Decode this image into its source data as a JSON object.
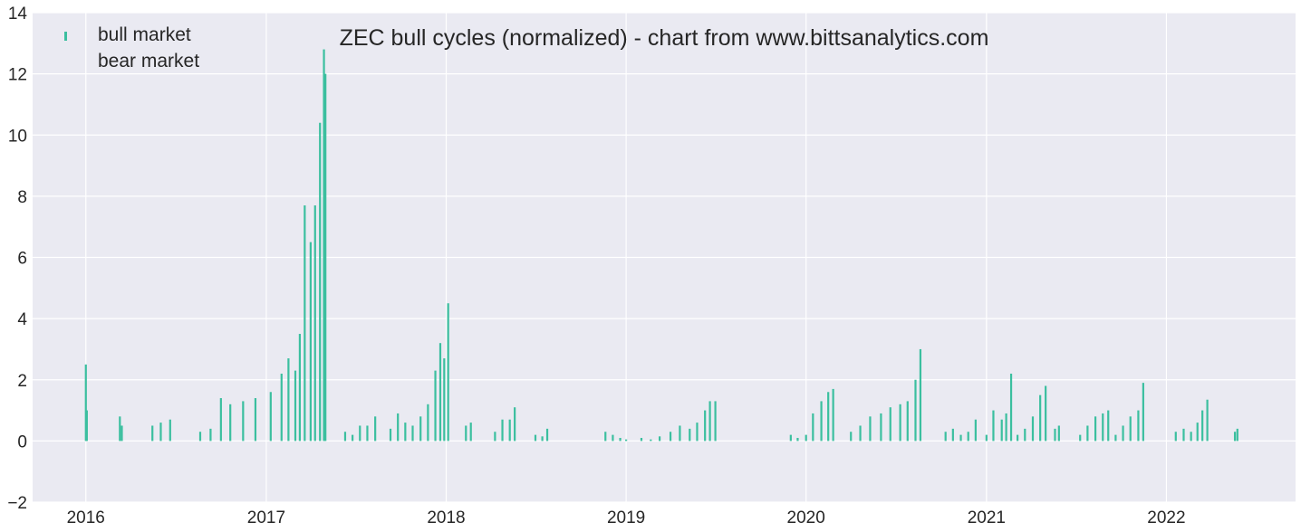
{
  "chart_data": {
    "type": "bar",
    "title": "ZEC bull cycles (normalized)  - chart from www.bittsanalytics.com",
    "xlabel": "",
    "ylabel": "",
    "ylim": [
      -2,
      14
    ],
    "xlim": [
      "2015-09-15",
      "2022-09-20"
    ],
    "yticks": [
      -2,
      0,
      2,
      4,
      6,
      8,
      10,
      12,
      14
    ],
    "xticks": [
      {
        "date": "2016-01-01",
        "label": "2016"
      },
      {
        "date": "2017-01-01",
        "label": "2017"
      },
      {
        "date": "2018-01-01",
        "label": "2018"
      },
      {
        "date": "2019-01-01",
        "label": "2019"
      },
      {
        "date": "2020-01-01",
        "label": "2020"
      },
      {
        "date": "2021-01-01",
        "label": "2021"
      },
      {
        "date": "2022-01-01",
        "label": "2022"
      }
    ],
    "grid": true,
    "legend_position": "top-left",
    "legend": [
      {
        "label": "bull market",
        "color": "#3bbf9f"
      },
      {
        "label": "bear market",
        "color": null
      }
    ],
    "colors": {
      "bull": "#3bbf9f",
      "background": "#eaeaf2",
      "grid": "#ffffff"
    },
    "series": [
      {
        "name": "bull market",
        "values": [
          [
            "2016-01-01",
            2.5
          ],
          [
            "2016-01-03",
            1.0
          ],
          [
            "2016-03-10",
            0.8
          ],
          [
            "2016-03-14",
            0.5
          ],
          [
            "2016-05-15",
            0.5
          ],
          [
            "2016-06-01",
            0.6
          ],
          [
            "2016-06-20",
            0.7
          ],
          [
            "2016-08-20",
            0.3
          ],
          [
            "2016-09-10",
            0.4
          ],
          [
            "2016-10-01",
            1.4
          ],
          [
            "2016-10-20",
            1.2
          ],
          [
            "2016-11-15",
            1.3
          ],
          [
            "2016-12-10",
            1.4
          ],
          [
            "2017-01-10",
            1.6
          ],
          [
            "2017-02-01",
            2.2
          ],
          [
            "2017-02-15",
            2.7
          ],
          [
            "2017-03-01",
            2.3
          ],
          [
            "2017-03-10",
            3.5
          ],
          [
            "2017-03-20",
            7.7
          ],
          [
            "2017-04-01",
            6.5
          ],
          [
            "2017-04-10",
            7.7
          ],
          [
            "2017-04-20",
            10.4
          ],
          [
            "2017-04-28",
            12.8
          ],
          [
            "2017-05-01",
            12.0
          ],
          [
            "2017-06-10",
            0.3
          ],
          [
            "2017-06-25",
            0.2
          ],
          [
            "2017-07-10",
            0.5
          ],
          [
            "2017-07-25",
            0.5
          ],
          [
            "2017-08-10",
            0.8
          ],
          [
            "2017-09-10",
            0.4
          ],
          [
            "2017-09-25",
            0.9
          ],
          [
            "2017-10-10",
            0.6
          ],
          [
            "2017-10-25",
            0.5
          ],
          [
            "2017-11-10",
            0.8
          ],
          [
            "2017-11-25",
            1.2
          ],
          [
            "2017-12-10",
            2.3
          ],
          [
            "2017-12-20",
            3.2
          ],
          [
            "2017-12-28",
            2.7
          ],
          [
            "2018-01-05",
            4.5
          ],
          [
            "2018-02-10",
            0.5
          ],
          [
            "2018-02-20",
            0.6
          ],
          [
            "2018-04-10",
            0.3
          ],
          [
            "2018-04-25",
            0.7
          ],
          [
            "2018-05-10",
            0.7
          ],
          [
            "2018-05-20",
            1.1
          ],
          [
            "2018-07-01",
            0.2
          ],
          [
            "2018-07-15",
            0.15
          ],
          [
            "2018-07-25",
            0.4
          ],
          [
            "2018-11-20",
            0.3
          ],
          [
            "2018-12-05",
            0.2
          ],
          [
            "2018-12-20",
            0.1
          ],
          [
            "2019-01-01",
            0.05
          ],
          [
            "2019-02-01",
            0.1
          ],
          [
            "2019-02-20",
            0.05
          ],
          [
            "2019-03-10",
            0.15
          ],
          [
            "2019-04-01",
            0.3
          ],
          [
            "2019-04-20",
            0.5
          ],
          [
            "2019-05-10",
            0.4
          ],
          [
            "2019-05-25",
            0.6
          ],
          [
            "2019-06-10",
            1.0
          ],
          [
            "2019-06-20",
            1.3
          ],
          [
            "2019-07-01",
            1.3
          ],
          [
            "2019-12-01",
            0.2
          ],
          [
            "2019-12-15",
            0.1
          ],
          [
            "2020-01-01",
            0.2
          ],
          [
            "2020-01-15",
            0.9
          ],
          [
            "2020-02-01",
            1.3
          ],
          [
            "2020-02-15",
            1.6
          ],
          [
            "2020-02-25",
            1.7
          ],
          [
            "2020-04-01",
            0.3
          ],
          [
            "2020-04-20",
            0.5
          ],
          [
            "2020-05-10",
            0.8
          ],
          [
            "2020-06-01",
            0.9
          ],
          [
            "2020-06-20",
            1.1
          ],
          [
            "2020-07-10",
            1.2
          ],
          [
            "2020-07-25",
            1.3
          ],
          [
            "2020-08-10",
            2.0
          ],
          [
            "2020-08-20",
            3.0
          ],
          [
            "2020-10-10",
            0.3
          ],
          [
            "2020-10-25",
            0.4
          ],
          [
            "2020-11-10",
            0.2
          ],
          [
            "2020-11-25",
            0.3
          ],
          [
            "2020-12-10",
            0.7
          ],
          [
            "2021-01-01",
            0.2
          ],
          [
            "2021-01-15",
            1.0
          ],
          [
            "2021-02-01",
            0.7
          ],
          [
            "2021-02-10",
            0.9
          ],
          [
            "2021-02-20",
            2.2
          ],
          [
            "2021-03-05",
            0.2
          ],
          [
            "2021-03-20",
            0.4
          ],
          [
            "2021-04-05",
            0.8
          ],
          [
            "2021-04-20",
            1.5
          ],
          [
            "2021-05-01",
            1.8
          ],
          [
            "2021-05-20",
            0.4
          ],
          [
            "2021-05-28",
            0.5
          ],
          [
            "2021-07-10",
            0.2
          ],
          [
            "2021-07-25",
            0.5
          ],
          [
            "2021-08-10",
            0.8
          ],
          [
            "2021-08-25",
            0.9
          ],
          [
            "2021-09-05",
            1.0
          ],
          [
            "2021-09-20",
            0.2
          ],
          [
            "2021-10-05",
            0.5
          ],
          [
            "2021-10-20",
            0.8
          ],
          [
            "2021-11-05",
            1.0
          ],
          [
            "2021-11-15",
            1.9
          ],
          [
            "2022-01-20",
            0.3
          ],
          [
            "2022-02-05",
            0.4
          ],
          [
            "2022-02-20",
            0.3
          ],
          [
            "2022-03-05",
            0.6
          ],
          [
            "2022-03-15",
            1.0
          ],
          [
            "2022-03-25",
            1.35
          ],
          [
            "2022-05-20",
            0.3
          ],
          [
            "2022-05-25",
            0.4
          ]
        ]
      }
    ]
  }
}
